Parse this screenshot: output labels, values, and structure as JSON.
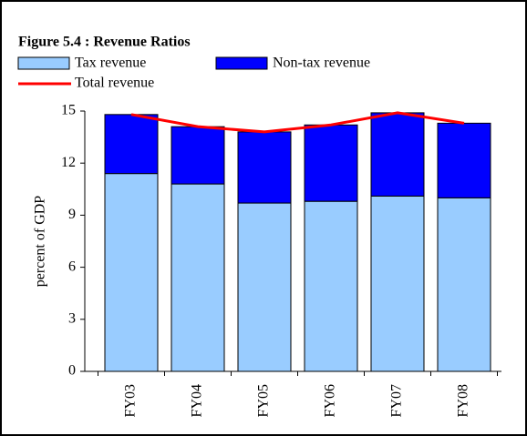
{
  "chart_data": {
    "type": "bar",
    "stacked": true,
    "title": "Figure 5.4 : Revenue Ratios",
    "y_label": "percent of GDP",
    "categories": [
      "FY03",
      "FY04",
      "FY05",
      "FY06",
      "FY07",
      "FY08"
    ],
    "series": [
      {
        "name": "Tax revenue",
        "type": "bar",
        "color": "#99ccff",
        "values": [
          11.4,
          10.8,
          9.7,
          9.8,
          10.1,
          10.0
        ]
      },
      {
        "name": "Non-tax revenue",
        "type": "bar",
        "color": "#0000ff",
        "values": [
          3.4,
          3.3,
          4.1,
          4.4,
          4.8,
          4.3
        ]
      },
      {
        "name": "Total revenue",
        "type": "line",
        "color": "#ff0000",
        "values": [
          14.8,
          14.1,
          13.8,
          14.2,
          14.9,
          14.3
        ]
      }
    ],
    "ylim": [
      0,
      15
    ],
    "yticks": [
      0,
      3,
      6,
      9,
      12,
      15
    ]
  }
}
